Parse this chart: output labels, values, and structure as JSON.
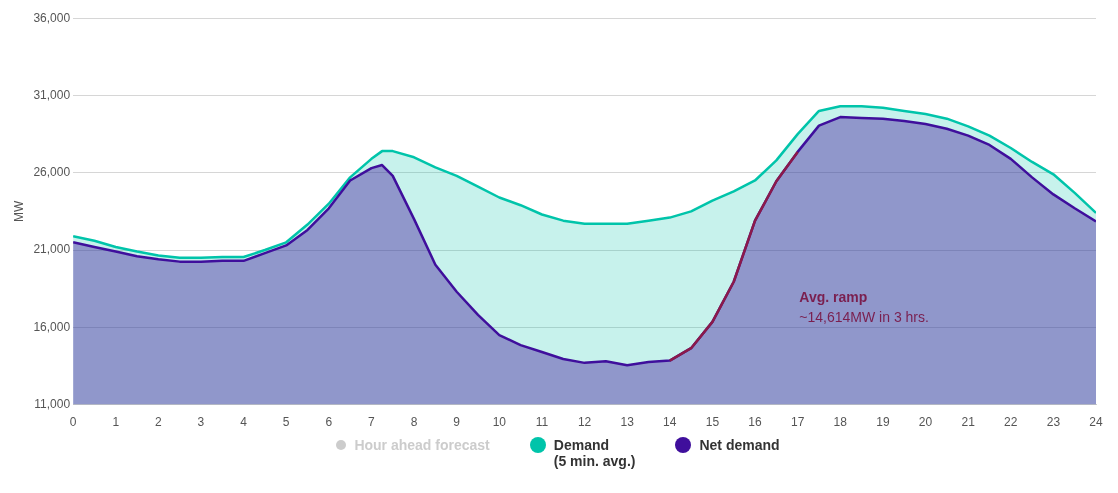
{
  "chart_data": {
    "type": "area",
    "ylabel": "MW",
    "xlim": [
      0,
      24
    ],
    "xticks": [
      0,
      1,
      2,
      3,
      4,
      5,
      6,
      7,
      8,
      9,
      10,
      11,
      12,
      13,
      14,
      15,
      16,
      17,
      18,
      19,
      20,
      21,
      22,
      23,
      24
    ],
    "ylim": [
      11000,
      36000
    ],
    "yticks": [
      {
        "value": 11000,
        "label": "11,000"
      },
      {
        "value": 16000,
        "label": "16,000"
      },
      {
        "value": 21000,
        "label": "21,000"
      },
      {
        "value": 26000,
        "label": "26,000"
      },
      {
        "value": 31000,
        "label": "31,000"
      },
      {
        "value": 36000,
        "label": "36,000"
      }
    ],
    "grid": "y",
    "legend": "bottom",
    "marker": "none",
    "annotations": [
      "Avg. ramp",
      "~14,614MW in 3 hrs."
    ],
    "series": [
      {
        "name": "Hour ahead forecast",
        "type": "line",
        "color": "#cccccc"
      },
      {
        "name": "Demand (5 min. avg.)",
        "color": "#00c4aa",
        "x": [
          0,
          0.5,
          1,
          1.5,
          2,
          2.5,
          3,
          3.5,
          4,
          4.5,
          5,
          5.5,
          6,
          6.5,
          7,
          7.25,
          7.5,
          8,
          8.5,
          9,
          9.5,
          10,
          10.5,
          11,
          11.5,
          12,
          12.5,
          13,
          13.5,
          14,
          14.5,
          15,
          15.5,
          16,
          16.5,
          17,
          17.5,
          18,
          18.5,
          19,
          19.5,
          20,
          20.5,
          21,
          21.5,
          22,
          22.5,
          23,
          23.5,
          24
        ],
        "values": [
          21900,
          21600,
          21200,
          20900,
          20650,
          20500,
          20500,
          20550,
          20550,
          21000,
          21500,
          22650,
          24000,
          25700,
          26900,
          27400,
          27400,
          27000,
          26350,
          25800,
          25100,
          24400,
          23900,
          23300,
          22900,
          22700,
          22700,
          22700,
          22900,
          23100,
          23500,
          24200,
          24800,
          25500,
          26800,
          28500,
          30000,
          30300,
          30300,
          30200,
          30000,
          29800,
          29500,
          29000,
          28400,
          27600,
          26700,
          25900,
          24700,
          23400
        ]
      },
      {
        "name": "Net demand",
        "color": "#3f0f9c",
        "x": [
          0,
          0.5,
          1,
          1.5,
          2,
          2.5,
          3,
          3.5,
          4,
          4.5,
          5,
          5.5,
          6,
          6.5,
          7,
          7.25,
          7.5,
          8,
          8.5,
          9,
          9.5,
          10,
          10.5,
          11,
          11.5,
          12,
          12.5,
          13,
          13.5,
          14,
          14.5,
          15,
          15.5,
          16,
          16.5,
          17,
          17.5,
          18,
          18.5,
          19,
          19.5,
          20,
          20.5,
          21,
          21.5,
          22,
          22.5,
          23,
          23.5,
          24
        ],
        "values": [
          21500,
          21200,
          20900,
          20600,
          20400,
          20250,
          20250,
          20300,
          20300,
          20800,
          21300,
          22300,
          23700,
          25500,
          26300,
          26500,
          25800,
          23000,
          20050,
          18300,
          16800,
          15500,
          14850,
          14400,
          13950,
          13700,
          13800,
          13550,
          13750,
          13850,
          14650,
          16350,
          18950,
          22900,
          25450,
          27350,
          29050,
          29600,
          29550,
          29500,
          29350,
          29150,
          28850,
          28400,
          27800,
          26900,
          25700,
          24600,
          23700,
          22850
        ]
      },
      {
        "type": "line",
        "color": "#8b1a4a",
        "x": [
          14,
          14.5,
          15,
          15.5,
          16,
          16.5,
          17
        ],
        "values": [
          13850,
          14650,
          16350,
          18950,
          22900,
          25450,
          27350
        ]
      }
    ]
  }
}
